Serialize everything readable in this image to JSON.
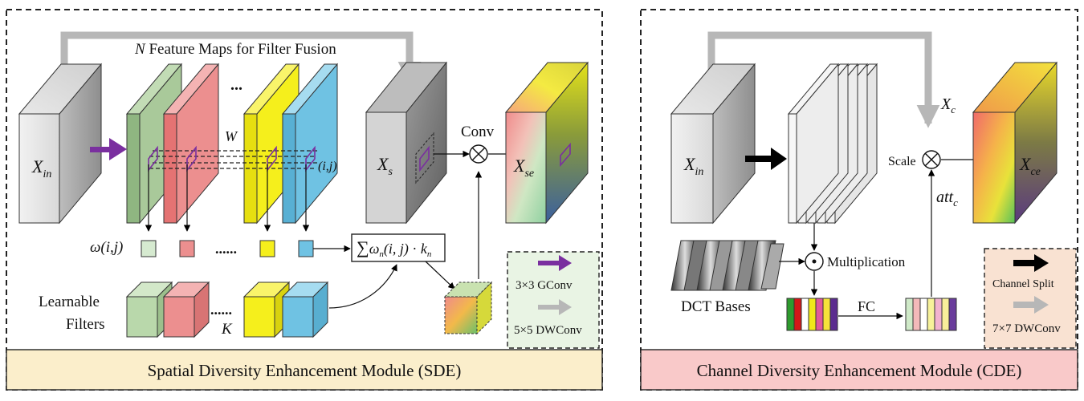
{
  "sde": {
    "caption": "Spatial Diversity Enhancement Module (SDE)",
    "fusion_label_n": "N",
    "fusion_label": " Feature Maps for Filter Fusion",
    "dots_top": "...",
    "w_label": "W",
    "ij_label": "(i,j)",
    "conv_label": "Conv",
    "xin": {
      "main": "X",
      "sub": "in"
    },
    "xs": {
      "main": "X",
      "sub": "s"
    },
    "xse": {
      "main": "X",
      "sub": "se"
    },
    "omega_label": "ω(i,j)",
    "dots_mid": "......",
    "dots_filters": "......",
    "k_label": "K",
    "learnable_1": "Learnable",
    "learnable_2": "Filters",
    "formula": {
      "sum": "∑",
      "omega": "ω",
      "n": "n",
      "ij": "(i, j)",
      "dot": " · ",
      "k": "k",
      "kn": "n"
    },
    "legend": {
      "gconv": "3×3 GConv",
      "dwconv": "5×5 DWConv"
    }
  },
  "cde": {
    "caption": "Channel Diversity Enhancement Module (CDE)",
    "xin": {
      "main": "X",
      "sub": "in"
    },
    "xc": {
      "main": "X",
      "sub": "c"
    },
    "xce": {
      "main": "X",
      "sub": "ce"
    },
    "scale_label": "Scale",
    "att": {
      "main": "att",
      "sub": "c"
    },
    "multiplication": "Multiplication",
    "dct_bases": "DCT Bases",
    "fc_label": "FC",
    "legend": {
      "split": "Channel Split",
      "dwconv": "7×7 DWConv"
    }
  },
  "colors": {
    "green": "#a9c99a",
    "red": "#ec8f8f",
    "yellow": "#f5ef1c",
    "blue": "#6fc2e3",
    "purple": "#7a2f9f",
    "gray_arrow": "#b7b7b7",
    "sde_caption_bg": "#fbeecb",
    "cde_caption_bg": "#f9c9c9",
    "sde_legend_bg": "#e9f4e4",
    "cde_legend_bg": "#f9e2d2"
  }
}
